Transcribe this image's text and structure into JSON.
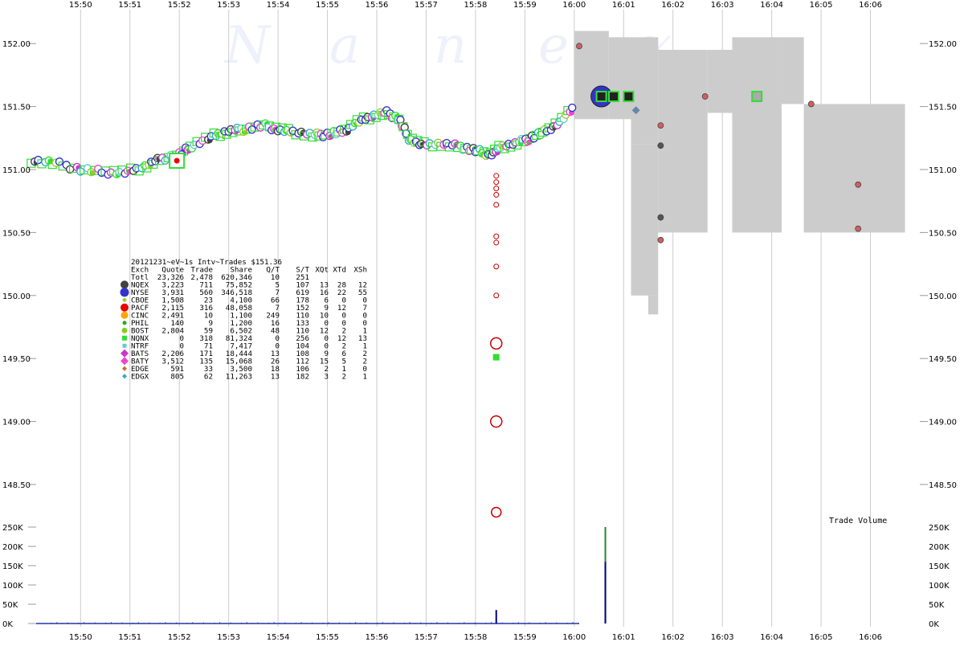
{
  "chart_data": {
    "type": "scatter",
    "watermark": [
      "N",
      "a",
      "n",
      "e",
      "x"
    ],
    "x_ticks": [
      "15:50",
      "15:51",
      "15:52",
      "15:53",
      "15:54",
      "15:55",
      "15:56",
      "15:57",
      "15:58",
      "15:59",
      "16:00",
      "16:01",
      "16:02",
      "16:03",
      "16:04",
      "16:05",
      "16:06"
    ],
    "x_range_minutes": [
      949.1,
      967.0
    ],
    "y_ticks": [
      "152.00",
      "151.50",
      "151.00",
      "150.50",
      "150.00",
      "149.50",
      "149.00",
      "148.50"
    ],
    "y_range": [
      148.2,
      152.25
    ],
    "grid": "vertical at each minute",
    "nbbo_band": [
      [
        960.0,
        152.1,
        151.4
      ],
      [
        960.7,
        152.05,
        151.4
      ],
      [
        961.15,
        152.05,
        151.2
      ],
      [
        961.7,
        151.95,
        150.5
      ],
      [
        962.7,
        151.95,
        151.45
      ],
      [
        963.2,
        152.05,
        150.5
      ],
      [
        964.2,
        152.05,
        151.52
      ],
      [
        964.65,
        151.52,
        150.5
      ],
      [
        966.7,
        151.52,
        150.5
      ]
    ],
    "nbbo_band_extensions": [
      [
        961.15,
        961.7,
        151.2,
        150.0
      ],
      [
        961.5,
        961.7,
        150.0,
        149.85
      ]
    ],
    "price_path": [
      [
        949.0,
        151.07
      ],
      [
        949.5,
        151.05
      ],
      [
        950.0,
        151.0
      ],
      [
        950.5,
        150.98
      ],
      [
        950.9,
        150.98
      ],
      [
        951.3,
        151.02
      ],
      [
        951.6,
        151.08
      ],
      [
        952.0,
        151.12
      ],
      [
        952.3,
        151.2
      ],
      [
        952.7,
        151.27
      ],
      [
        953.0,
        151.3
      ],
      [
        953.3,
        151.32
      ],
      [
        953.7,
        151.35
      ],
      [
        954.0,
        151.32
      ],
      [
        954.3,
        151.3
      ],
      [
        954.7,
        151.27
      ],
      [
        955.0,
        151.28
      ],
      [
        955.3,
        151.3
      ],
      [
        955.6,
        151.38
      ],
      [
        955.9,
        151.42
      ],
      [
        956.2,
        151.45
      ],
      [
        956.45,
        151.4
      ],
      [
        956.65,
        151.25
      ],
      [
        956.9,
        151.2
      ],
      [
        957.3,
        151.2
      ],
      [
        957.7,
        151.18
      ],
      [
        958.0,
        151.15
      ],
      [
        958.3,
        151.12
      ],
      [
        958.5,
        151.18
      ],
      [
        958.8,
        151.2
      ],
      [
        959.1,
        151.25
      ],
      [
        959.4,
        151.3
      ],
      [
        959.7,
        151.38
      ],
      [
        960.0,
        151.5
      ]
    ],
    "trades_flash": [
      150.95,
      150.9,
      150.85,
      150.8,
      150.72,
      150.47,
      150.42,
      150.23,
      150.0
    ],
    "trades_big_red": [
      [
        958.42,
        149.62,
        7
      ],
      [
        958.42,
        149.0,
        7
      ],
      [
        958.42,
        148.28,
        6
      ]
    ],
    "green_square_flash": [
      958.42,
      149.51
    ],
    "late_trades": [
      [
        960.1,
        151.98,
        "#d06060"
      ],
      [
        961.75,
        151.35,
        "#d06060"
      ],
      [
        961.75,
        151.19,
        "#555555"
      ],
      [
        961.75,
        150.62,
        "#555555"
      ],
      [
        961.75,
        150.44,
        "#d06060"
      ],
      [
        962.65,
        151.58,
        "#d06060"
      ],
      [
        964.8,
        151.52,
        "#d06060"
      ],
      [
        965.75,
        150.88,
        "#d06060"
      ],
      [
        965.75,
        150.53,
        "#d06060"
      ]
    ],
    "late_squares": [
      [
        960.55,
        151.58,
        "#222222"
      ],
      [
        960.8,
        151.58,
        "#222222"
      ],
      [
        961.1,
        151.58,
        "#222222"
      ],
      [
        963.7,
        151.58,
        "#aaaaaa"
      ]
    ],
    "volume_axis": [
      "250K",
      "200K",
      "150K",
      "100K",
      "50K",
      "0K"
    ],
    "volume_max": 250000,
    "volume_spikes": [
      [
        958.42,
        35000,
        "#000080"
      ],
      [
        960.63,
        250000,
        "#228822"
      ],
      [
        960.63,
        160000,
        "#000080"
      ]
    ],
    "volume_label": "Trade Volume",
    "colors": {
      "band": "#cccccc",
      "grid": "#cccccc",
      "trade_edge": "#cc0000",
      "nqex": "#404040",
      "nyse": "#3333cc",
      "cboe": "#9acd32",
      "pacf": "#ee0000",
      "cinc": "#ffa500",
      "phil": "#22aa22",
      "bost": "#88cc22",
      "nqnx": "#33dd33",
      "ntrf": "#66cccc",
      "bats": "#cc33cc",
      "baty": "#ee44cc",
      "edge": "#cc6633",
      "edgx": "#33aacc"
    }
  },
  "stats": {
    "title": "20121231~eV~1s Intv~Trades $151.36",
    "header": [
      "Exch",
      "Quote",
      "Trade",
      "Share",
      "Q/T",
      "S/T",
      "XQt",
      "XTd",
      "XSh"
    ],
    "total": [
      "Totl",
      "23,326",
      "2,478",
      "620,346",
      "10",
      "251",
      "",
      "",
      ""
    ],
    "rows": [
      {
        "cells": [
          "NQEX",
          "3,223",
          "711",
          "75,852",
          "5",
          "107",
          "13",
          "28",
          "12"
        ],
        "color": "#404040",
        "shape": "circle",
        "size": 5
      },
      {
        "cells": [
          "NYSE",
          "3,931",
          "560",
          "346,518",
          "7",
          "619",
          "16",
          "22",
          "55"
        ],
        "color": "#3333cc",
        "shape": "circle",
        "size": 5.5
      },
      {
        "cells": [
          "CBOE",
          "1,508",
          "23",
          "4,100",
          "66",
          "178",
          "6",
          "0",
          "0"
        ],
        "color": "#9acd32",
        "shape": "diamond",
        "size": 3
      },
      {
        "cells": [
          "PACF",
          "2,115",
          "316",
          "48,058",
          "7",
          "152",
          "9",
          "12",
          "7"
        ],
        "color": "#ee0000",
        "shape": "circle",
        "size": 5
      },
      {
        "cells": [
          "CINC",
          "2,491",
          "10",
          "1,100",
          "249",
          "110",
          "10",
          "0",
          "0"
        ],
        "color": "#ffa500",
        "shape": "circle",
        "size": 4.5
      },
      {
        "cells": [
          "PHIL",
          "140",
          "9",
          "1,200",
          "16",
          "133",
          "0",
          "0",
          "0"
        ],
        "color": "#22aa22",
        "shape": "circle",
        "size": 2.5
      },
      {
        "cells": [
          "BOST",
          "2,804",
          "59",
          "6,502",
          "48",
          "110",
          "12",
          "2",
          "1"
        ],
        "color": "#88cc22",
        "shape": "circle",
        "size": 3.5
      },
      {
        "cells": [
          "NQNX",
          "0",
          "318",
          "81,324",
          "0",
          "256",
          "0",
          "12",
          "13"
        ],
        "color": "#33dd33",
        "shape": "square",
        "size": 3
      },
      {
        "cells": [
          "NTRF",
          "0",
          "71",
          "7,417",
          "0",
          "104",
          "0",
          "2",
          "1"
        ],
        "color": "#66cccc",
        "shape": "square",
        "size": 2.5
      },
      {
        "cells": [
          "BATS",
          "2,206",
          "171",
          "18,444",
          "13",
          "108",
          "9",
          "6",
          "2"
        ],
        "color": "#cc33cc",
        "shape": "diamond",
        "size": 5
      },
      {
        "cells": [
          "BATY",
          "3,512",
          "135",
          "15,068",
          "26",
          "112",
          "15",
          "5",
          "2"
        ],
        "color": "#ee44cc",
        "shape": "diamond",
        "size": 5
      },
      {
        "cells": [
          "EDGE",
          "591",
          "33",
          "3,500",
          "18",
          "106",
          "2",
          "1",
          "0"
        ],
        "color": "#cc6633",
        "shape": "diamond",
        "size": 3
      },
      {
        "cells": [
          "EDGX",
          "805",
          "62",
          "11,263",
          "13",
          "182",
          "3",
          "2",
          "1"
        ],
        "color": "#33aacc",
        "shape": "diamond",
        "size": 3
      }
    ]
  }
}
